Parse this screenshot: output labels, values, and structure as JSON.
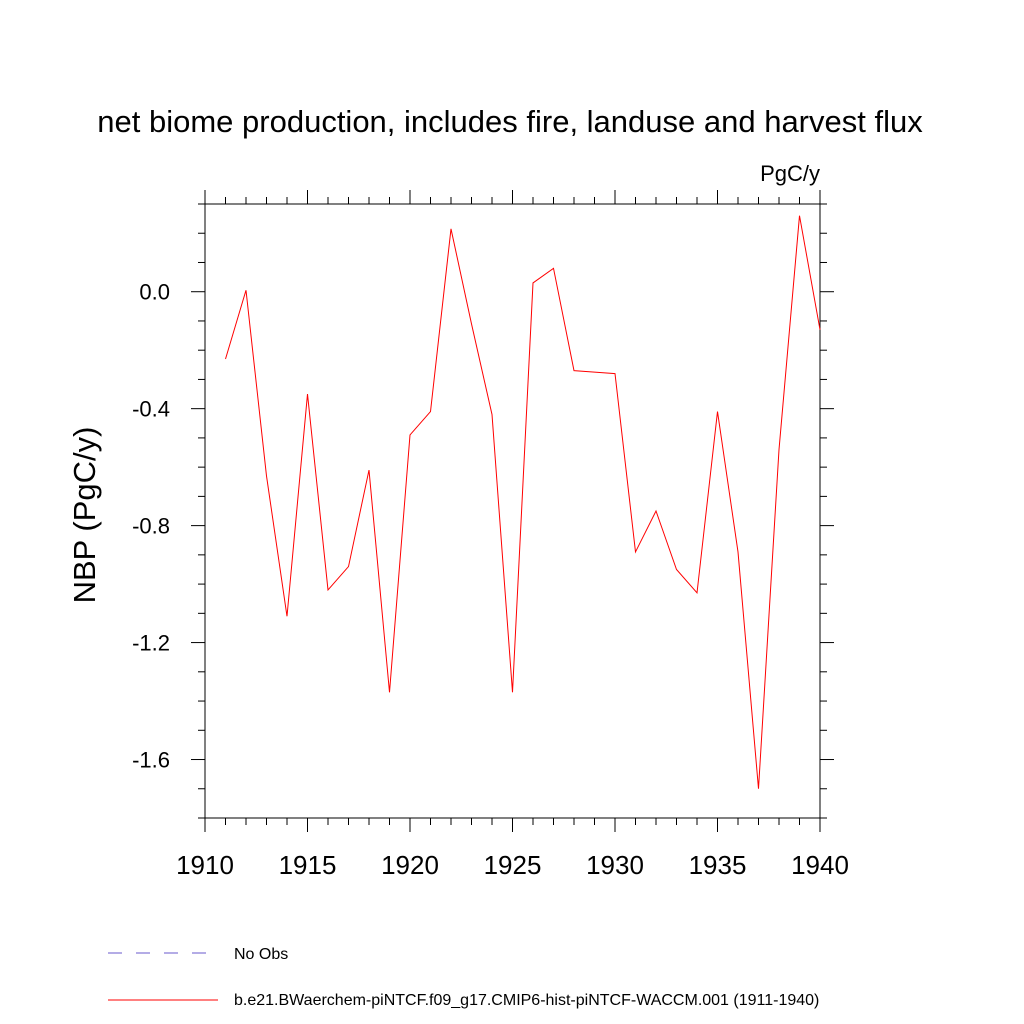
{
  "chart_data": {
    "type": "line",
    "title": "net biome production, includes fire, landuse and harvest flux",
    "units_label": "PgC/y",
    "ylabel": "NBP  (PgC/y)",
    "xlabel": "",
    "xlim": [
      1910,
      1940
    ],
    "ylim": [
      -1.8,
      0.3
    ],
    "x_ticks": [
      1910,
      1915,
      1920,
      1925,
      1930,
      1935,
      1940
    ],
    "x_tick_labels": [
      "1910",
      "1915",
      "1920",
      "1925",
      "1930",
      "1935",
      "1940"
    ],
    "y_ticks": [
      -1.6,
      -1.2,
      -0.8,
      -0.4,
      0.0
    ],
    "y_tick_labels": [
      "-1.6",
      "-1.2",
      "-0.8",
      "-0.4",
      "0.0"
    ],
    "grid": false,
    "legend_position": "bottom",
    "series": [
      {
        "name": "b.e21.BWaerchem-piNTCF.f09_g17.CMIP6-hist-piNTCF-WACCM.001 (1911-1940)",
        "color": "#ff0000",
        "style": "solid",
        "x": [
          1911,
          1912,
          1913,
          1914,
          1915,
          1916,
          1917,
          1918,
          1919,
          1920,
          1921,
          1922,
          1923,
          1924,
          1925,
          1926,
          1927,
          1928,
          1929,
          1930,
          1931,
          1932,
          1933,
          1934,
          1935,
          1936,
          1937,
          1938,
          1939,
          1940
        ],
        "y": [
          -0.23,
          0.005,
          -0.63,
          -1.11,
          -0.35,
          -1.02,
          -0.94,
          -0.61,
          -1.37,
          -0.49,
          -0.41,
          0.215,
          -0.11,
          -0.42,
          -1.37,
          0.03,
          0.08,
          -0.27,
          -0.275,
          -0.28,
          -0.89,
          -0.75,
          -0.95,
          -1.03,
          -0.41,
          -0.89,
          -1.7,
          -0.54,
          0.26,
          -0.13
        ]
      },
      {
        "name": "No Obs",
        "color": "#6a5acd",
        "style": "dashed",
        "x": [],
        "y": []
      }
    ]
  }
}
